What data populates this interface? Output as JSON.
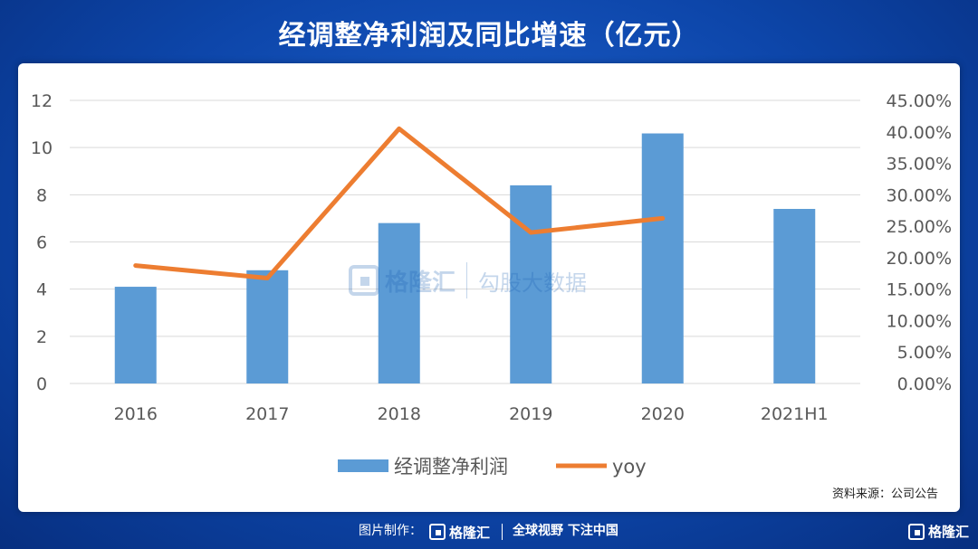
{
  "title": "经调整净利润及同比增速（亿元）",
  "source": "资料来源：公司公告",
  "footer": {
    "made_by": "图片制作：",
    "brand": "格隆汇",
    "slogan": "全球视野 下注中国"
  },
  "watermark": {
    "brand": "格隆汇",
    "sub": "勾股大数据"
  },
  "colors": {
    "bar": "#5b9bd5",
    "line": "#ed7d31",
    "grid": "#d9d9d9",
    "axis_text": "#595959"
  },
  "chart_data": {
    "type": "bar",
    "categories": [
      "2016",
      "2017",
      "2018",
      "2019",
      "2020",
      "2021H1"
    ],
    "series": [
      {
        "name": "经调整净利润",
        "type": "bar",
        "axis": "left",
        "values": [
          4.1,
          4.8,
          6.8,
          8.4,
          10.6,
          7.4
        ]
      },
      {
        "name": "yoy",
        "type": "line",
        "axis": "right",
        "values": [
          0.1875,
          0.1675,
          0.405,
          0.24,
          0.2625,
          null
        ]
      }
    ],
    "y_left": {
      "min": 0,
      "max": 12,
      "ticks": [
        "0",
        "2",
        "4",
        "6",
        "8",
        "10",
        "12"
      ]
    },
    "y_right": {
      "min": 0,
      "max": 0.45,
      "ticks": [
        "0.00%",
        "5.00%",
        "10.00%",
        "15.00%",
        "20.00%",
        "25.00%",
        "30.00%",
        "35.00%",
        "40.00%",
        "45.00%"
      ]
    },
    "grid": true,
    "legend_position": "bottom"
  }
}
